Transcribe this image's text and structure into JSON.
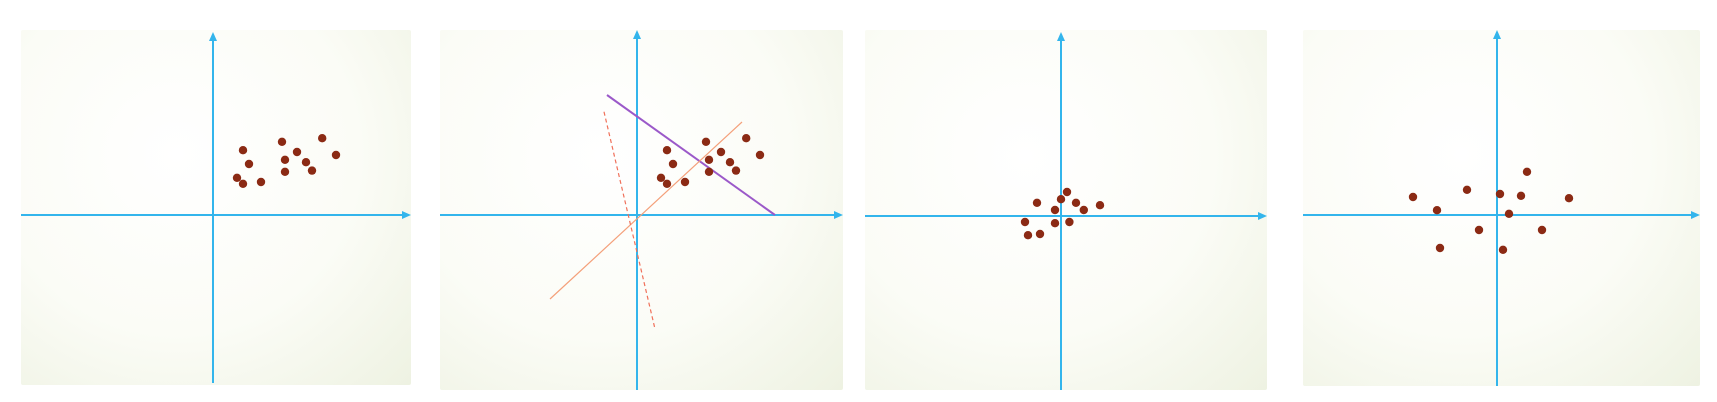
{
  "colors": {
    "axis": "#33b5ec",
    "point": "#8b2a14",
    "solid_line_purple": "#9b59c9",
    "thin_line_orange": "#f4a07a",
    "dashed_line_red": "#f0705a"
  },
  "panels": [
    {
      "name": "original-data",
      "points": [
        [
          0.5,
          1.08
        ],
        [
          1.15,
          1.22
        ],
        [
          1.82,
          1.28
        ],
        [
          1.4,
          1.05
        ],
        [
          2.05,
          1.0
        ],
        [
          1.55,
          0.88
        ],
        [
          1.2,
          0.92
        ],
        [
          0.6,
          0.85
        ],
        [
          0.4,
          0.62
        ],
        [
          0.8,
          0.55
        ],
        [
          1.2,
          0.72
        ],
        [
          1.65,
          0.74
        ],
        [
          0.5,
          0.52
        ]
      ],
      "lines": []
    },
    {
      "name": "original-data-with-principal-directions",
      "points": [
        [
          0.5,
          1.08
        ],
        [
          1.15,
          1.22
        ],
        [
          1.82,
          1.28
        ],
        [
          1.4,
          1.05
        ],
        [
          2.05,
          1.0
        ],
        [
          1.55,
          0.88
        ],
        [
          1.2,
          0.92
        ],
        [
          0.6,
          0.85
        ],
        [
          0.4,
          0.62
        ],
        [
          0.8,
          0.55
        ],
        [
          1.2,
          0.72
        ],
        [
          1.65,
          0.74
        ],
        [
          0.5,
          0.52
        ]
      ],
      "lines": [
        {
          "name": "purple-solid-line",
          "from": [
            -0.5,
            2.0
          ],
          "to": [
            2.3,
            0.0
          ],
          "style": "solid_line_purple"
        },
        {
          "name": "orange-thin-line",
          "from": [
            -1.45,
            -1.4
          ],
          "to": [
            1.75,
            1.55
          ],
          "style": "thin_line_orange"
        },
        {
          "name": "red-dashed-line",
          "from": [
            -0.55,
            1.72
          ],
          "to": [
            0.3,
            -1.9
          ],
          "style": "dashed_line_red"
        }
      ]
    },
    {
      "name": "centered-data",
      "points": [
        [
          -0.4,
          0.22
        ],
        [
          0.1,
          0.4
        ],
        [
          0.25,
          0.22
        ],
        [
          0.65,
          0.18
        ],
        [
          0.38,
          0.1
        ],
        [
          0.0,
          0.28
        ],
        [
          -0.1,
          0.1
        ],
        [
          -0.6,
          -0.1
        ],
        [
          -0.55,
          -0.32
        ],
        [
          -0.35,
          -0.3
        ],
        [
          -0.1,
          -0.12
        ],
        [
          0.14,
          -0.1
        ]
      ],
      "lines": []
    },
    {
      "name": "decorrelated-data",
      "points": [
        [
          -1.4,
          0.3
        ],
        [
          -0.5,
          0.42
        ],
        [
          0.05,
          0.35
        ],
        [
          0.4,
          0.32
        ],
        [
          0.5,
          0.72
        ],
        [
          1.2,
          0.28
        ],
        [
          -1.0,
          0.08
        ],
        [
          0.2,
          0.02
        ],
        [
          -0.3,
          -0.25
        ],
        [
          0.75,
          -0.25
        ],
        [
          -0.95,
          -0.55
        ],
        [
          0.1,
          -0.58
        ]
      ],
      "lines": []
    }
  ]
}
